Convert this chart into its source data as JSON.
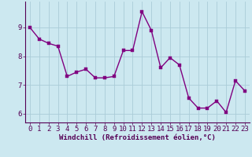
{
  "x": [
    0,
    1,
    2,
    3,
    4,
    5,
    6,
    7,
    8,
    9,
    10,
    11,
    12,
    13,
    14,
    15,
    16,
    17,
    18,
    19,
    20,
    21,
    22,
    23
  ],
  "y": [
    9.0,
    8.6,
    8.45,
    8.35,
    7.3,
    7.45,
    7.55,
    7.25,
    7.25,
    7.3,
    8.2,
    8.2,
    9.55,
    8.9,
    7.6,
    7.95,
    7.7,
    6.55,
    6.2,
    6.2,
    6.45,
    6.05,
    7.15,
    6.8
  ],
  "line_color": "#800080",
  "marker_color": "#800080",
  "bg_color": "#cce8f0",
  "grid_color": "#aaccd8",
  "xlabel": "Windchill (Refroidissement éolien,°C)",
  "ylim": [
    5.7,
    9.9
  ],
  "xlim": [
    -0.5,
    23.5
  ],
  "yticks": [
    6,
    7,
    8,
    9
  ],
  "xticks": [
    0,
    1,
    2,
    3,
    4,
    5,
    6,
    7,
    8,
    9,
    10,
    11,
    12,
    13,
    14,
    15,
    16,
    17,
    18,
    19,
    20,
    21,
    22,
    23
  ],
  "xlabel_fontsize": 6.5,
  "tick_fontsize": 6.5,
  "line_width": 1.0,
  "marker_size": 2.5
}
